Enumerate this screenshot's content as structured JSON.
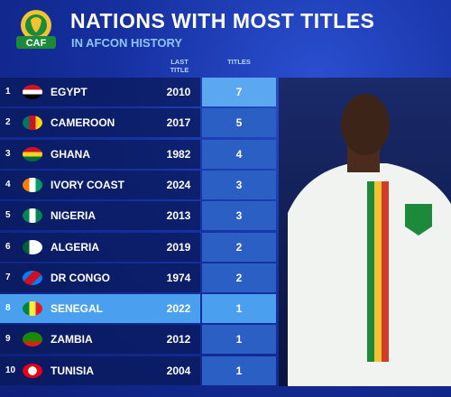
{
  "header": {
    "logo": "CAF",
    "title": "NATIONS WITH MOST TITLES",
    "subtitle": "IN AFCON HISTORY"
  },
  "table": {
    "columns": [
      "LAST TITLE",
      "TITLES"
    ],
    "rows": [
      [
        "1",
        "EGYPT",
        "2010",
        "7"
      ],
      [
        "2",
        "CAMEROON",
        "2017",
        "5"
      ],
      [
        "3",
        "GHANA",
        "1982",
        "4"
      ],
      [
        "4",
        "IVORY COAST",
        "2024",
        "3"
      ],
      [
        "5",
        "NIGERIA",
        "2013",
        "3"
      ],
      [
        "6",
        "ALGERIA",
        "2019",
        "2"
      ],
      [
        "7",
        "DR CONGO",
        "1974",
        "2"
      ],
      [
        "8",
        "SENEGAL",
        "2022",
        "1"
      ],
      [
        "9",
        "ZAMBIA",
        "2012",
        "1"
      ],
      [
        "10",
        "TUNISIA",
        "2004",
        "1"
      ]
    ]
  }
}
